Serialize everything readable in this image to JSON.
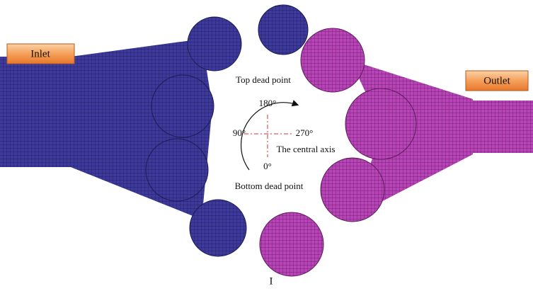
{
  "labels": {
    "inlet": "Inlet",
    "outlet": "Outlet",
    "top_dead_point": "Top dead point",
    "bottom_dead_point": "Bottom dead point",
    "central_axis": "The central axis",
    "deg_180": "180°",
    "deg_90": "90°",
    "deg_270": "270°",
    "deg_0": "0°",
    "figure_label": "I"
  }
}
